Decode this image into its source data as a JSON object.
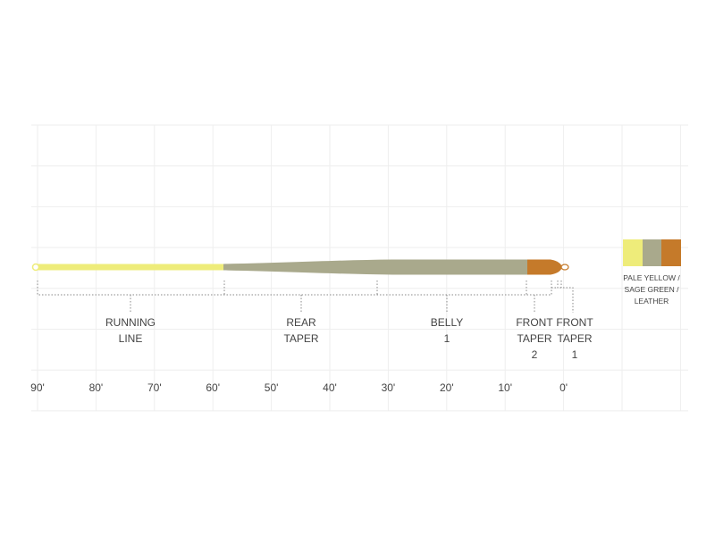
{
  "segments": [
    {
      "label": [
        "RUNNING",
        "LINE"
      ]
    },
    {
      "label": [
        "REAR",
        "TAPER"
      ]
    },
    {
      "label": [
        "BELLY",
        "1"
      ]
    },
    {
      "label": [
        "FRONT",
        "TAPER",
        "2"
      ]
    },
    {
      "label": [
        "FRONT",
        "TAPER",
        "1"
      ]
    }
  ],
  "axis_labels": [
    "90'",
    "80'",
    "70'",
    "60'",
    "50'",
    "40'",
    "30'",
    "20'",
    "10'",
    "0'"
  ],
  "swatch": {
    "label": [
      "PALE YELLOW /",
      "SAGE GREEN /",
      "LEATHER"
    ]
  }
}
